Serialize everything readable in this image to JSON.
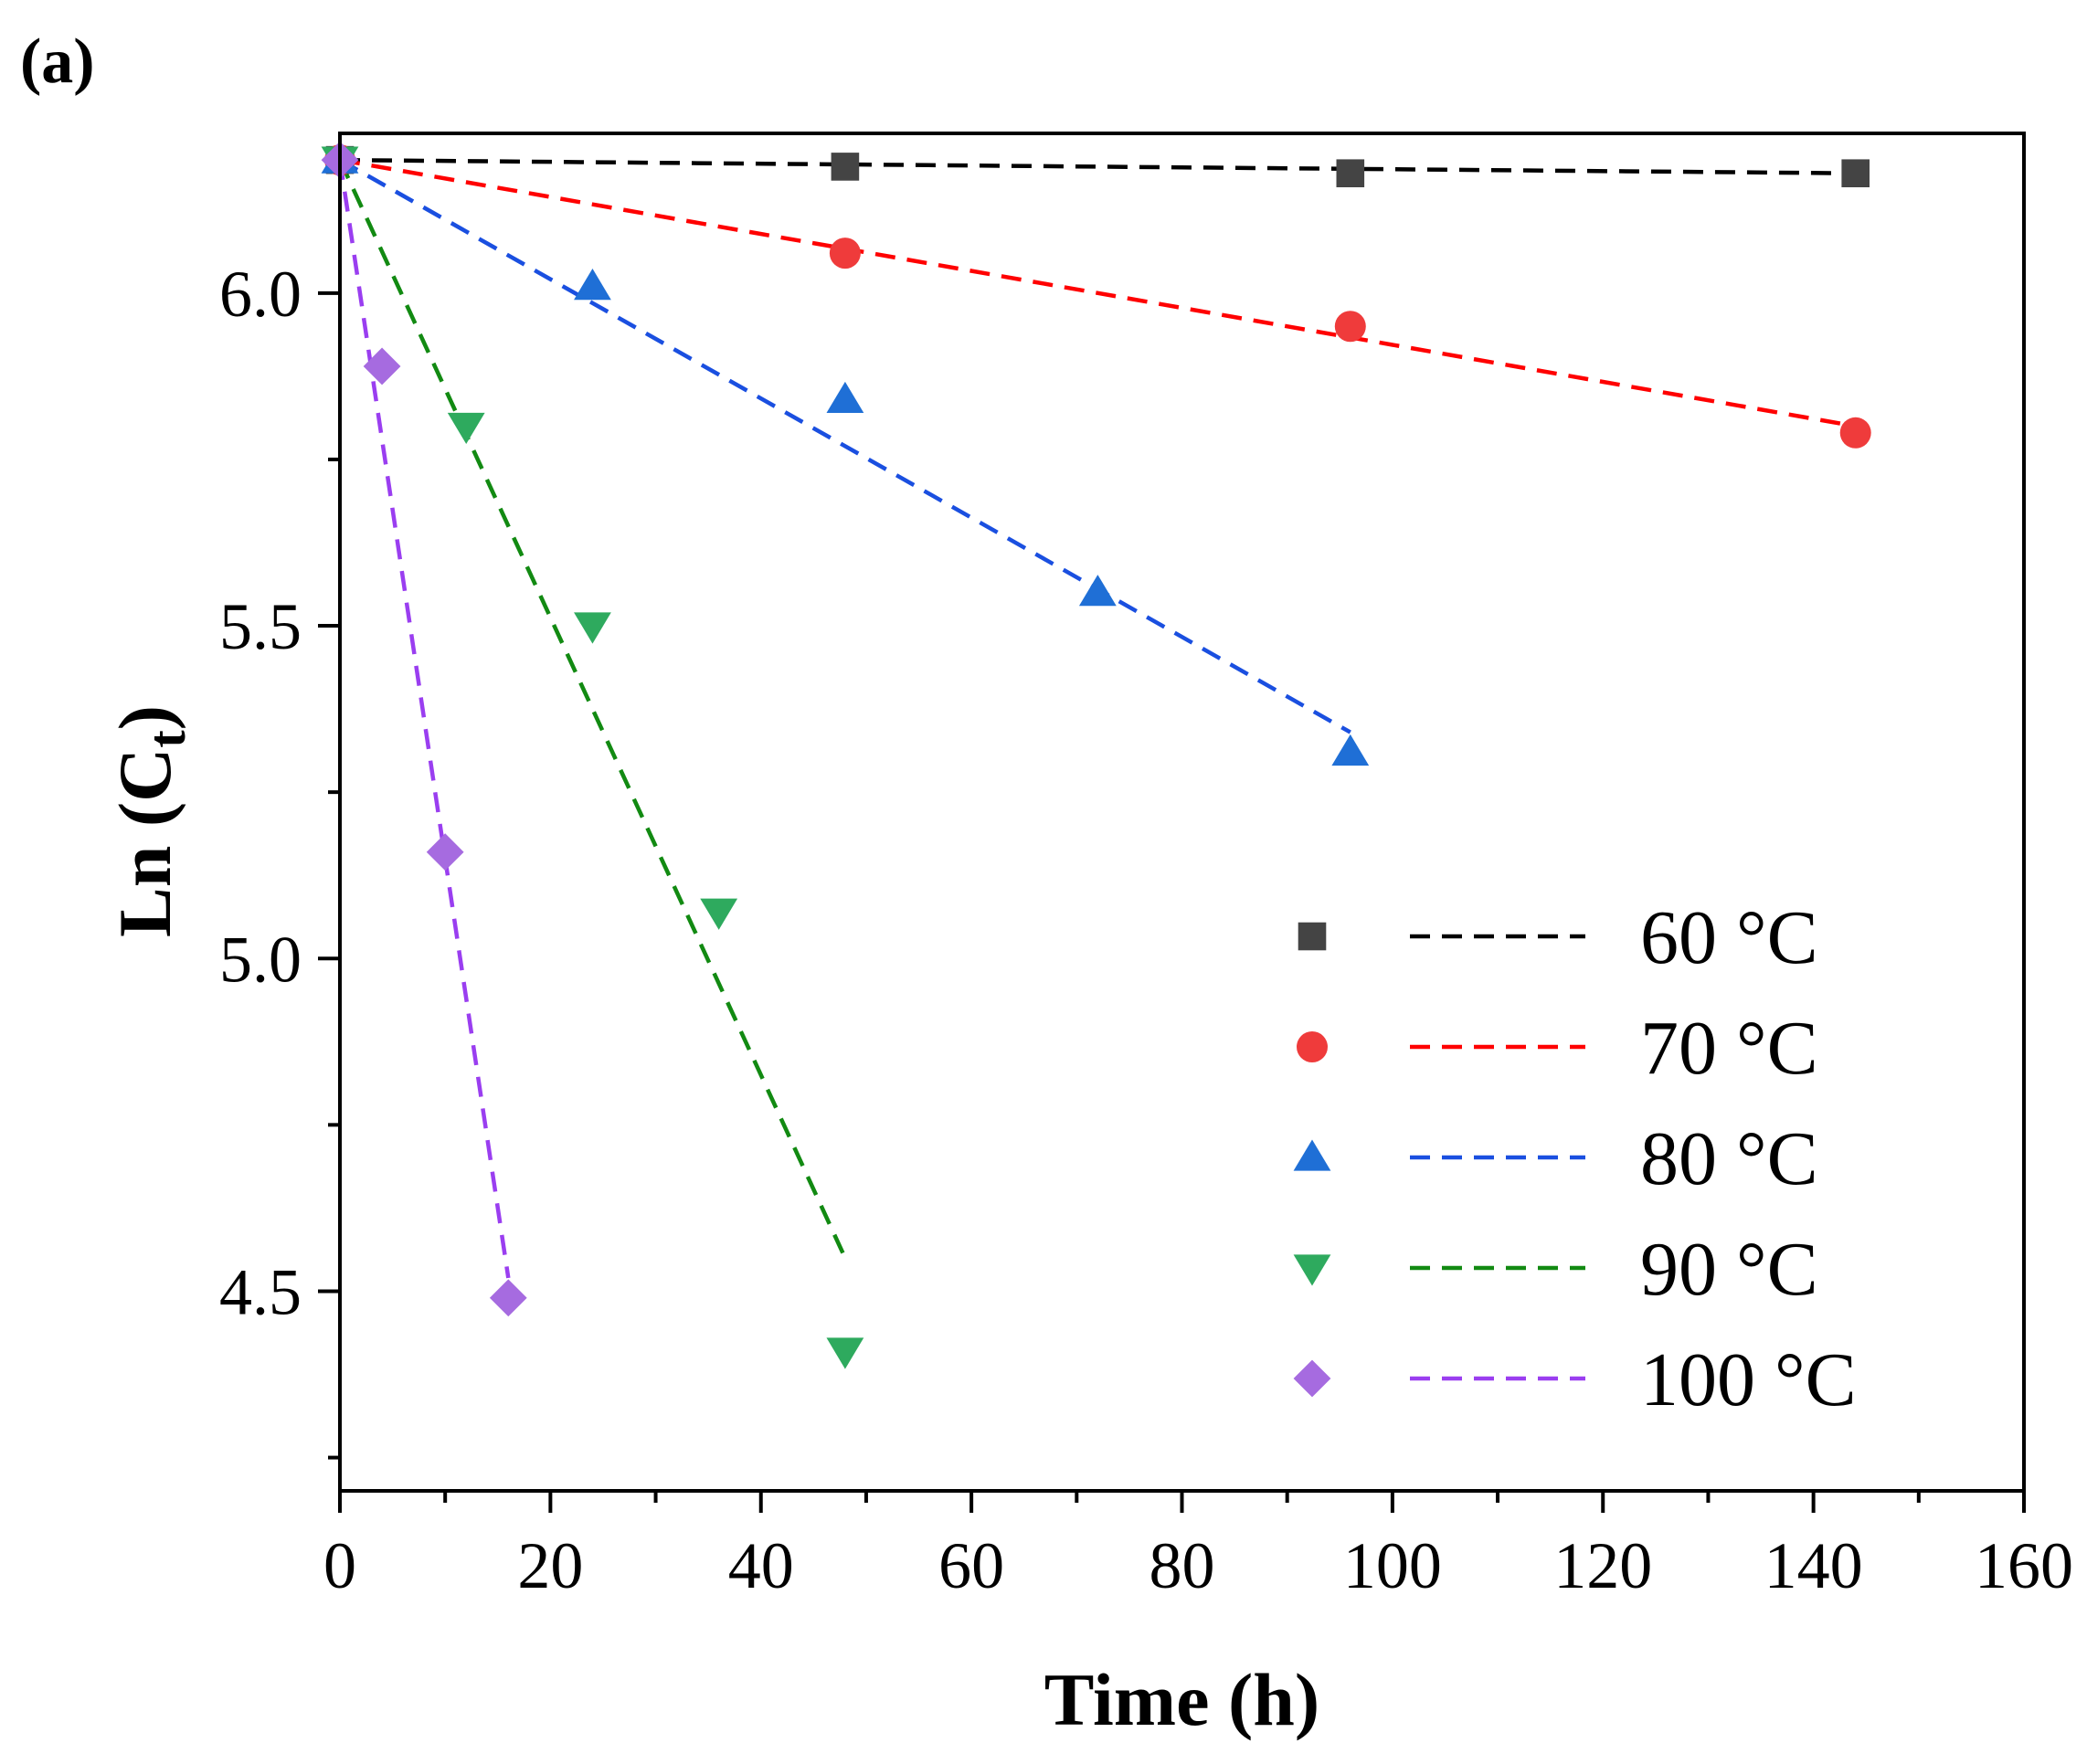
{
  "panel_label": "(a)",
  "chart_data": {
    "type": "scatter",
    "xlabel": "Time (h)",
    "ylabel_main": "Ln (C",
    "ylabel_sub": "t",
    "ylabel_close": ")",
    "xlim": [
      0,
      160
    ],
    "ylim": [
      4.2,
      6.24
    ],
    "x_ticks": [
      0,
      20,
      40,
      60,
      80,
      100,
      120,
      140,
      160
    ],
    "x_tick_labels": [
      "0",
      "20",
      "40",
      "60",
      "80",
      "100",
      "120",
      "140",
      "160"
    ],
    "y_ticks": [
      4.5,
      5.0,
      5.5,
      6.0
    ],
    "y_tick_labels": [
      "4.5",
      "5.0",
      "5.5",
      "6.0"
    ],
    "grid": false,
    "legend_position": "bottom-right",
    "series": [
      {
        "name": "60 °C",
        "color": "#444444",
        "line_color": "#000000",
        "marker": "square",
        "x": [
          0,
          48,
          96,
          144
        ],
        "y": [
          6.2,
          6.19,
          6.18,
          6.18
        ],
        "fit": {
          "x": [
            0,
            144
          ],
          "y": [
            6.2,
            6.18
          ]
        }
      },
      {
        "name": "70 °C",
        "color": "#ef3b3b",
        "line_color": "#ff0000",
        "marker": "circle",
        "x": [
          0,
          48,
          96,
          144
        ],
        "y": [
          6.2,
          6.06,
          5.95,
          5.79
        ],
        "fit": {
          "x": [
            0,
            144
          ],
          "y": [
            6.2,
            5.8
          ]
        }
      },
      {
        "name": "80 °C",
        "color": "#1f6fd6",
        "line_color": "#1a4fe0",
        "marker": "triangle-up",
        "x": [
          0,
          24,
          48,
          72,
          96
        ],
        "y": [
          6.2,
          6.01,
          5.84,
          5.55,
          5.31
        ],
        "fit": {
          "x": [
            0,
            96
          ],
          "y": [
            6.2,
            5.34
          ]
        }
      },
      {
        "name": "90 °C",
        "color": "#2eaa5e",
        "line_color": "#128a12",
        "marker": "triangle-down",
        "x": [
          0,
          12,
          24,
          36,
          48
        ],
        "y": [
          6.2,
          5.8,
          5.5,
          5.07,
          4.41
        ],
        "fit": {
          "x": [
            0,
            48
          ],
          "y": [
            6.2,
            4.55
          ]
        }
      },
      {
        "name": "100 °C",
        "color": "#a66be0",
        "line_color": "#9a3ef0",
        "marker": "diamond",
        "x": [
          0,
          4,
          10,
          16
        ],
        "y": [
          6.2,
          5.89,
          5.16,
          4.49
        ],
        "fit": {
          "x": [
            0,
            16
          ],
          "y": [
            6.2,
            4.52
          ]
        }
      }
    ]
  }
}
